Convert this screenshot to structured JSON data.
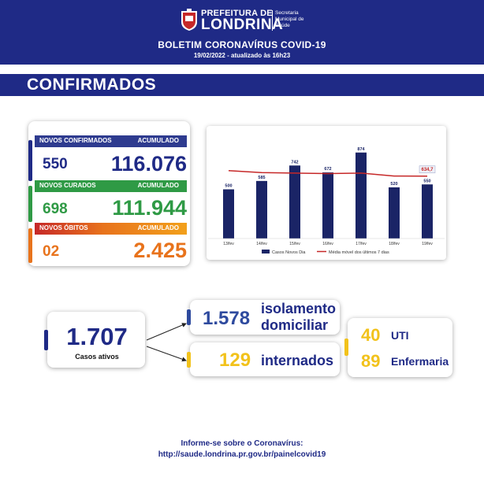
{
  "header": {
    "logo_line1": "PREFEITURA DE",
    "logo_line2": "LONDRINA",
    "secretaria": [
      "Secretaria",
      "Municipal de",
      "Saúde"
    ],
    "bulletin_title": "BOLETIM CORONAVÍRUS COVID-19",
    "bulletin_date": "19/02/2022 - atualizado às 16h23"
  },
  "section_title": "CONFIRMADOS",
  "stats": {
    "confirmed": {
      "label": "NOVOS CONFIRMADOS",
      "acc_label": "ACUMULADO",
      "new": "550",
      "total": "116.076",
      "color": "#2e3b8f"
    },
    "cured": {
      "label": "NOVOS CURADOS",
      "acc_label": "ACUMULADO",
      "new": "698",
      "total": "111.944",
      "color": "#2f9a45"
    },
    "deaths": {
      "label": "NOVOS ÓBITOS",
      "acc_label": "ACUMULADO",
      "new": "02",
      "total": "2.425",
      "color": "#e8731c"
    }
  },
  "chart_data": {
    "type": "bar",
    "categories": [
      "13/fev",
      "14/fev",
      "15/fev",
      "16/fev",
      "17/fev",
      "18/fev",
      "19/fev"
    ],
    "series": [
      {
        "name": "Casos Novos Dia",
        "type": "bar",
        "values": [
          500,
          585,
          742,
          672,
          874,
          520,
          550
        ],
        "color": "#1a2466"
      },
      {
        "name": "Média móvel dos últimos 7 dias",
        "type": "line",
        "values": [
          690,
          670,
          665,
          660,
          665,
          635,
          634.7
        ],
        "color": "#c62828"
      }
    ],
    "bar_labels": [
      "500",
      "585",
      "742",
      "672",
      "874",
      "520",
      "550"
    ],
    "last_avg_label": "634,7",
    "ylim": [
      0,
      1000
    ]
  },
  "active": {
    "total": "1.707",
    "total_label": "Casos ativos",
    "isolation_value": "1.578",
    "isolation_label_1": "isolamento",
    "isolation_label_2": "domiciliar",
    "hospital_value": "129",
    "hospital_label": "internados",
    "uti_value": "40",
    "uti_label": "UTI",
    "ward_value": "89",
    "ward_label": "Enfermaria",
    "colors": {
      "navy": "#1f2a86",
      "yellow": "#f2c21b",
      "blue": "#2e4a9e"
    }
  },
  "footer": {
    "line1": "Informe-se sobre o Coronavírus:",
    "line2": "http://saude.londrina.pr.gov.br/painelcovid19"
  }
}
